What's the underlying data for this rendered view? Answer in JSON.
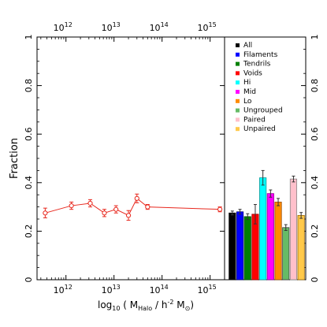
{
  "chart_data": [
    {
      "type": "line",
      "xscale": "log",
      "xlim": [
        250000000000.0,
        2000000000000000.0
      ],
      "ylim": [
        0,
        1
      ],
      "xticks_major": [
        1000000000000.0,
        10000000000000.0,
        100000000000000.0,
        1000000000000000.0
      ],
      "xtick_labels": [
        "10",
        "10",
        "10",
        "10"
      ],
      "xtick_exponents": [
        "12",
        "13",
        "14",
        "15"
      ],
      "yticks": [
        0,
        0.2,
        0.4,
        0.6,
        0.8,
        1
      ],
      "ytick_labels": [
        "0",
        "0.2",
        "0.4",
        "0.6",
        "0.8",
        "1"
      ],
      "ylabel": "Fraction",
      "xlabel": {
        "prefix": "log",
        "prefix_sub": "10",
        "open": " ( M",
        "m_sub": "Halo",
        "mid": " / h",
        "h_sup": "-2",
        "after": " M",
        "sun_sub": "⊙",
        "close": ")"
      },
      "color": "#e8281e",
      "series": [
        {
          "x": [
            370000000000.0,
            1300000000000.0,
            3200000000000.0,
            6300000000000.0,
            11000000000000.0,
            20000000000000.0,
            30000000000000.0,
            50000000000000.0,
            1600000000000000.0
          ],
          "y": [
            0.275,
            0.305,
            0.315,
            0.275,
            0.29,
            0.265,
            0.335,
            0.3,
            0.29
          ],
          "err": [
            0.02,
            0.015,
            0.015,
            0.015,
            0.015,
            0.02,
            0.018,
            0.01,
            0.01
          ]
        }
      ]
    },
    {
      "type": "bar",
      "ylim": [
        0,
        1
      ],
      "yticks": [
        0,
        0.2,
        0.4,
        0.6,
        0.8,
        1
      ],
      "ytick_labels": [
        "0",
        "0.2",
        "0.4",
        "0.6",
        "0.8",
        "1"
      ],
      "categories": [
        "All",
        "Filaments",
        "Tendrils",
        "Voids",
        "Hi",
        "Mid",
        "Lo",
        "Ungrouped",
        "Paired",
        "Unpaired"
      ],
      "values": [
        0.275,
        0.28,
        0.26,
        0.27,
        0.42,
        0.355,
        0.32,
        0.215,
        0.415,
        0.265
      ],
      "errors": [
        0.008,
        0.01,
        0.012,
        0.04,
        0.03,
        0.015,
        0.015,
        0.012,
        0.012,
        0.012
      ],
      "colors": [
        "#000000",
        "#0000ff",
        "#008000",
        "#ff0000",
        "#00ffff",
        "#ff00ff",
        "#ff8c00",
        "#66bb66",
        "#ffc0cb",
        "#ffc94a"
      ],
      "bar_edge_colors": [
        "#000000",
        "#000080",
        "#004d00",
        "#990000",
        "#009999",
        "#990099",
        "#994c00",
        "#444444",
        "#888888",
        "#996600"
      ],
      "legend_position": "top",
      "grid": false
    }
  ]
}
